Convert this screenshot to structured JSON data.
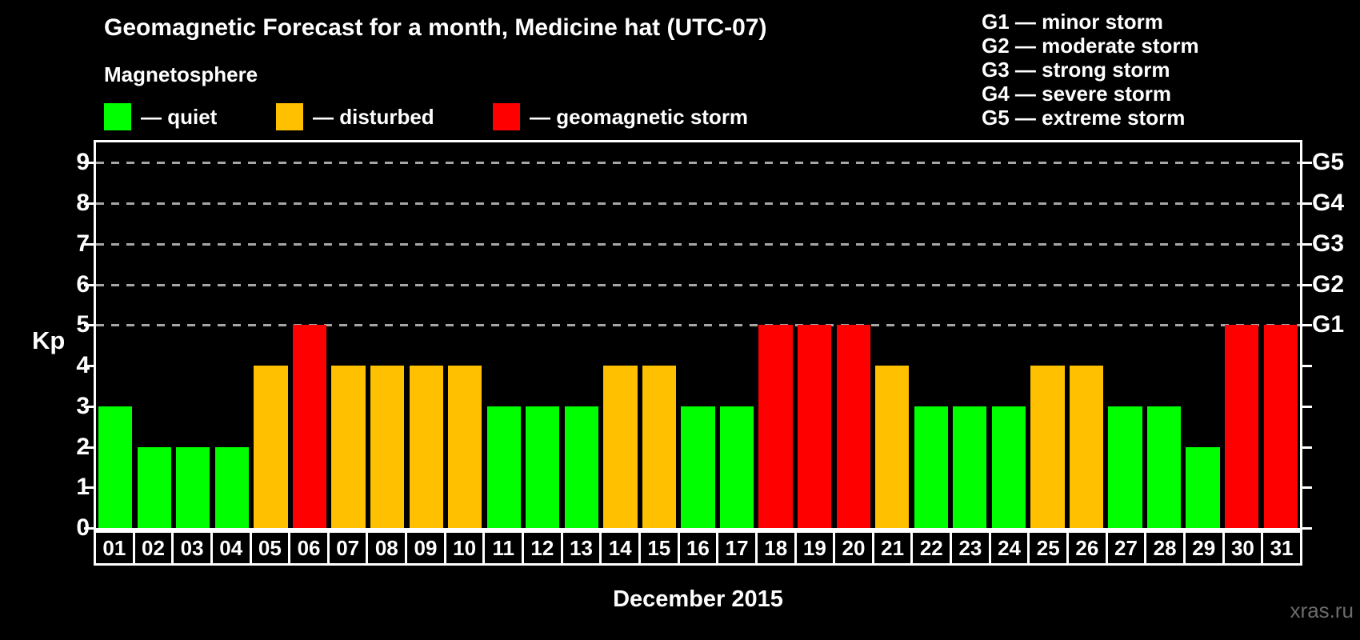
{
  "header": {
    "title": "Geomagnetic Forecast for a month, Medicine hat (UTC-07)",
    "subtitle": "Magnetosphere",
    "watermark": "xras.ru"
  },
  "palette": {
    "quiet": "#00ff00",
    "disturbed": "#ffc000",
    "storm": "#ff0000",
    "grid": "#a6a6a6",
    "axis": "#ffffff"
  },
  "legend": {
    "items": [
      {
        "name": "quiet",
        "label": "— quiet",
        "color": "#00ff00"
      },
      {
        "name": "disturbed",
        "label": "— disturbed",
        "color": "#ffc000"
      },
      {
        "name": "storm",
        "label": "— geomagnetic storm",
        "color": "#ff0000"
      }
    ]
  },
  "gscale_legend": {
    "items": [
      "G1 — minor storm",
      "G2 — moderate storm",
      "G3 — strong storm",
      "G4 — severe storm",
      "G5 — extreme storm"
    ]
  },
  "chart_data": {
    "type": "bar",
    "title": "Geomagnetic Forecast for a month, Medicine hat (UTC-07)",
    "xlabel": "December 2015",
    "ylabel": "Kp",
    "ylim": [
      0,
      9.5
    ],
    "yticks": [
      0,
      1,
      2,
      3,
      4,
      5,
      6,
      7,
      8,
      9
    ],
    "gridlines": [
      5,
      6,
      7,
      8,
      9
    ],
    "grid_style": "dashed",
    "legend_position": "top",
    "categories": [
      "01",
      "02",
      "03",
      "04",
      "05",
      "06",
      "07",
      "08",
      "09",
      "10",
      "11",
      "12",
      "13",
      "14",
      "15",
      "16",
      "17",
      "18",
      "19",
      "20",
      "21",
      "22",
      "23",
      "24",
      "25",
      "26",
      "27",
      "28",
      "29",
      "30",
      "31"
    ],
    "values": [
      3,
      2,
      2,
      2,
      4,
      5,
      4,
      4,
      4,
      4,
      3,
      3,
      3,
      4,
      4,
      3,
      3,
      5,
      5,
      5,
      4,
      3,
      3,
      3,
      4,
      4,
      3,
      3,
      2,
      5,
      5
    ],
    "statuses": [
      "quiet",
      "quiet",
      "quiet",
      "quiet",
      "disturbed",
      "storm",
      "disturbed",
      "disturbed",
      "disturbed",
      "disturbed",
      "quiet",
      "quiet",
      "quiet",
      "disturbed",
      "disturbed",
      "quiet",
      "quiet",
      "storm",
      "storm",
      "storm",
      "disturbed",
      "quiet",
      "quiet",
      "quiet",
      "disturbed",
      "disturbed",
      "quiet",
      "quiet",
      "quiet",
      "storm",
      "storm"
    ],
    "right_axis": [
      {
        "kp": 5,
        "label": "G1"
      },
      {
        "kp": 6,
        "label": "G2"
      },
      {
        "kp": 7,
        "label": "G3"
      },
      {
        "kp": 8,
        "label": "G4"
      },
      {
        "kp": 9,
        "label": "G5"
      }
    ]
  }
}
